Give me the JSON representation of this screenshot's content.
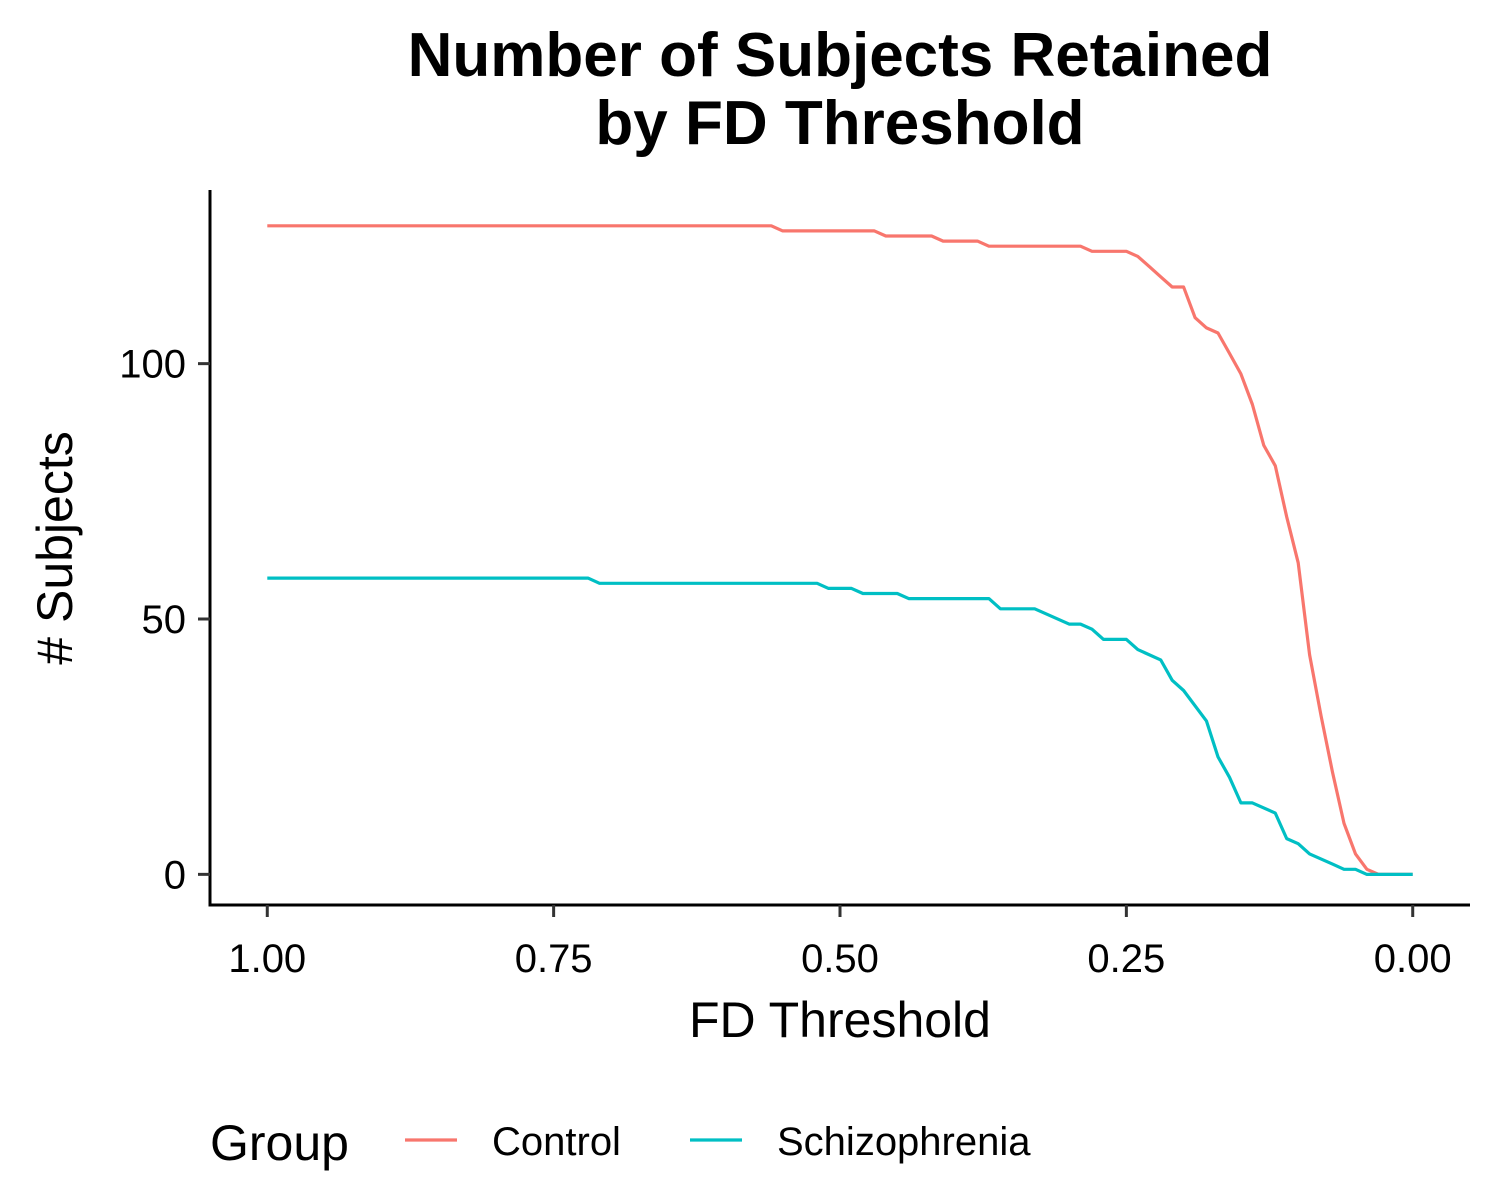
{
  "chart_data": {
    "type": "line",
    "title_lines": [
      "Number of Subjects Retained",
      "by FD Threshold"
    ],
    "xlabel": "FD Threshold",
    "ylabel": "# Subjects",
    "xlim": [
      1.05,
      -0.05
    ],
    "ylim": [
      -6,
      134
    ],
    "x_reversed": true,
    "x_ticks": [
      1.0,
      0.75,
      0.5,
      0.25,
      0.0
    ],
    "x_tick_labels": [
      "1.00",
      "0.75",
      "0.50",
      "0.25",
      "0.00"
    ],
    "y_ticks": [
      0,
      50,
      100
    ],
    "y_tick_labels": [
      "0",
      "50",
      "100"
    ],
    "grid": false,
    "legend": {
      "title": "Group",
      "position": "bottom",
      "entries": [
        "Control",
        "Schizophrenia"
      ]
    },
    "series": [
      {
        "name": "Control",
        "color": "#F8766D",
        "points": [
          [
            1.0,
            127
          ],
          [
            0.56,
            127
          ],
          [
            0.55,
            126
          ],
          [
            0.47,
            126
          ],
          [
            0.46,
            125
          ],
          [
            0.42,
            125
          ],
          [
            0.41,
            124
          ],
          [
            0.38,
            124
          ],
          [
            0.37,
            123
          ],
          [
            0.29,
            123
          ],
          [
            0.28,
            122
          ],
          [
            0.25,
            122
          ],
          [
            0.24,
            121
          ],
          [
            0.23,
            119
          ],
          [
            0.22,
            117
          ],
          [
            0.21,
            115
          ],
          [
            0.2,
            115
          ],
          [
            0.19,
            109
          ],
          [
            0.18,
            107
          ],
          [
            0.17,
            106
          ],
          [
            0.16,
            102
          ],
          [
            0.15,
            98
          ],
          [
            0.14,
            92
          ],
          [
            0.13,
            84
          ],
          [
            0.12,
            80
          ],
          [
            0.11,
            70
          ],
          [
            0.1,
            61
          ],
          [
            0.09,
            43
          ],
          [
            0.08,
            31
          ],
          [
            0.07,
            20
          ],
          [
            0.06,
            10
          ],
          [
            0.05,
            4
          ],
          [
            0.04,
            1
          ],
          [
            0.03,
            0
          ],
          [
            0.0,
            0
          ]
        ]
      },
      {
        "name": "Schizophrenia",
        "color": "#00BFC4",
        "points": [
          [
            1.0,
            58
          ],
          [
            0.72,
            58
          ],
          [
            0.71,
            57
          ],
          [
            0.52,
            57
          ],
          [
            0.51,
            56
          ],
          [
            0.49,
            56
          ],
          [
            0.48,
            55
          ],
          [
            0.45,
            55
          ],
          [
            0.44,
            54
          ],
          [
            0.37,
            54
          ],
          [
            0.36,
            52
          ],
          [
            0.33,
            52
          ],
          [
            0.3,
            49
          ],
          [
            0.29,
            49
          ],
          [
            0.28,
            48
          ],
          [
            0.27,
            46
          ],
          [
            0.25,
            46
          ],
          [
            0.24,
            44
          ],
          [
            0.22,
            42
          ],
          [
            0.21,
            38
          ],
          [
            0.2,
            36
          ],
          [
            0.18,
            30
          ],
          [
            0.17,
            23
          ],
          [
            0.16,
            19
          ],
          [
            0.15,
            14
          ],
          [
            0.14,
            14
          ],
          [
            0.12,
            12
          ],
          [
            0.11,
            7
          ],
          [
            0.1,
            6
          ],
          [
            0.09,
            4
          ],
          [
            0.07,
            2
          ],
          [
            0.06,
            1
          ],
          [
            0.05,
            1
          ],
          [
            0.04,
            0
          ],
          [
            0.0,
            0
          ]
        ]
      }
    ]
  }
}
